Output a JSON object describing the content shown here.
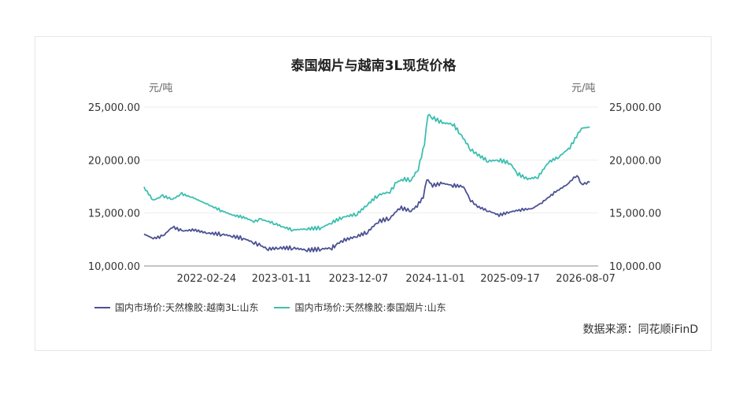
{
  "chart_data": {
    "type": "line",
    "title": "泰国烟片与越南3L现货价格",
    "ylabel_left": "元/吨",
    "ylabel_right": "元/吨",
    "ylim": [
      10000,
      25000
    ],
    "yticks": [
      "25,000.00",
      "20,000.00",
      "15,000.00",
      "10,000.00"
    ],
    "ytick_values": [
      25000,
      20000,
      15000,
      10000
    ],
    "xticks": [
      "2022-02-24",
      "2023-01-11",
      "2023-12-07",
      "2024-11-01",
      "2025-09-17",
      "2026-08-07"
    ],
    "x_range": [
      "2021-06-01",
      "2026-09-30"
    ],
    "series": [
      {
        "name": "国内市场价:天然橡胶:越南3L:山东",
        "color": "#4b5193",
        "points": [
          [
            "2021-06-01",
            13000
          ],
          [
            "2021-07-10",
            12600
          ],
          [
            "2021-08-20",
            12800
          ],
          [
            "2021-10-01",
            13700
          ],
          [
            "2021-11-10",
            13300
          ],
          [
            "2022-01-01",
            13400
          ],
          [
            "2022-03-01",
            13100
          ],
          [
            "2022-05-01",
            13000
          ],
          [
            "2022-06-15",
            12800
          ],
          [
            "2022-08-01",
            12600
          ],
          [
            "2022-09-15",
            12200
          ],
          [
            "2022-10-15",
            11900
          ],
          [
            "2022-11-15",
            11600
          ],
          [
            "2023-01-01",
            11700
          ],
          [
            "2023-03-01",
            11700
          ],
          [
            "2023-05-01",
            11500
          ],
          [
            "2023-07-01",
            11600
          ],
          [
            "2023-08-15",
            11700
          ],
          [
            "2023-09-01",
            12000
          ],
          [
            "2023-10-01",
            12400
          ],
          [
            "2023-12-01",
            12800
          ],
          [
            "2024-01-15",
            13200
          ],
          [
            "2024-03-01",
            14200
          ],
          [
            "2024-04-20",
            14500
          ],
          [
            "2024-06-01",
            15500
          ],
          [
            "2024-07-20",
            15200
          ],
          [
            "2024-08-15",
            15700
          ],
          [
            "2024-09-10",
            16500
          ],
          [
            "2024-09-25",
            18200
          ],
          [
            "2024-10-20",
            17600
          ],
          [
            "2024-12-01",
            17800
          ],
          [
            "2025-01-15",
            17600
          ],
          [
            "2025-03-01",
            17500
          ],
          [
            "2025-04-01",
            16200
          ],
          [
            "2025-05-01",
            15600
          ],
          [
            "2025-06-15",
            15200
          ],
          [
            "2025-08-01",
            14800
          ],
          [
            "2025-09-17",
            15100
          ],
          [
            "2025-11-01",
            15300
          ],
          [
            "2025-12-20",
            15400
          ],
          [
            "2026-02-01",
            16000
          ],
          [
            "2026-04-01",
            17000
          ],
          [
            "2026-05-20",
            17700
          ],
          [
            "2026-07-01",
            18600
          ],
          [
            "2026-07-20",
            17700
          ],
          [
            "2026-08-25",
            17900
          ]
        ]
      },
      {
        "name": "国内市场价:天然橡胶:泰国烟片:山东",
        "color": "#3cbfb0",
        "points": [
          [
            "2021-06-01",
            17400
          ],
          [
            "2021-07-10",
            16200
          ],
          [
            "2021-08-20",
            16600
          ],
          [
            "2021-10-01",
            16300
          ],
          [
            "2021-11-10",
            16800
          ],
          [
            "2022-01-01",
            16400
          ],
          [
            "2022-03-01",
            15800
          ],
          [
            "2022-05-01",
            15200
          ],
          [
            "2022-06-15",
            14800
          ],
          [
            "2022-08-01",
            14600
          ],
          [
            "2022-09-15",
            14200
          ],
          [
            "2022-10-15",
            14400
          ],
          [
            "2022-12-15",
            14000
          ],
          [
            "2023-01-15",
            13700
          ],
          [
            "2023-03-01",
            13400
          ],
          [
            "2023-05-01",
            13500
          ],
          [
            "2023-07-01",
            13600
          ],
          [
            "2023-08-15",
            14100
          ],
          [
            "2023-10-01",
            14600
          ],
          [
            "2023-12-01",
            14900
          ],
          [
            "2024-01-15",
            15800
          ],
          [
            "2024-03-01",
            16700
          ],
          [
            "2024-04-20",
            17000
          ],
          [
            "2024-05-20",
            17900
          ],
          [
            "2024-06-15",
            18200
          ],
          [
            "2024-07-20",
            18100
          ],
          [
            "2024-08-20",
            19200
          ],
          [
            "2024-09-15",
            21500
          ],
          [
            "2024-09-30",
            24300
          ],
          [
            "2024-10-20",
            24000
          ],
          [
            "2024-12-01",
            23500
          ],
          [
            "2025-01-15",
            23400
          ],
          [
            "2025-02-15",
            22500
          ],
          [
            "2025-04-01",
            21000
          ],
          [
            "2025-05-01",
            20500
          ],
          [
            "2025-06-15",
            19900
          ],
          [
            "2025-08-01",
            20000
          ],
          [
            "2025-09-17",
            19700
          ],
          [
            "2025-10-20",
            18700
          ],
          [
            "2025-12-01",
            18200
          ],
          [
            "2026-01-15",
            18400
          ],
          [
            "2026-03-01",
            19800
          ],
          [
            "2026-04-15",
            20300
          ],
          [
            "2026-06-01",
            21200
          ],
          [
            "2026-07-20",
            23000
          ],
          [
            "2026-08-25",
            23100
          ]
        ]
      }
    ],
    "grid": true,
    "legend_position": "bottom-left"
  },
  "source": "数据来源：同花顺iFinD"
}
